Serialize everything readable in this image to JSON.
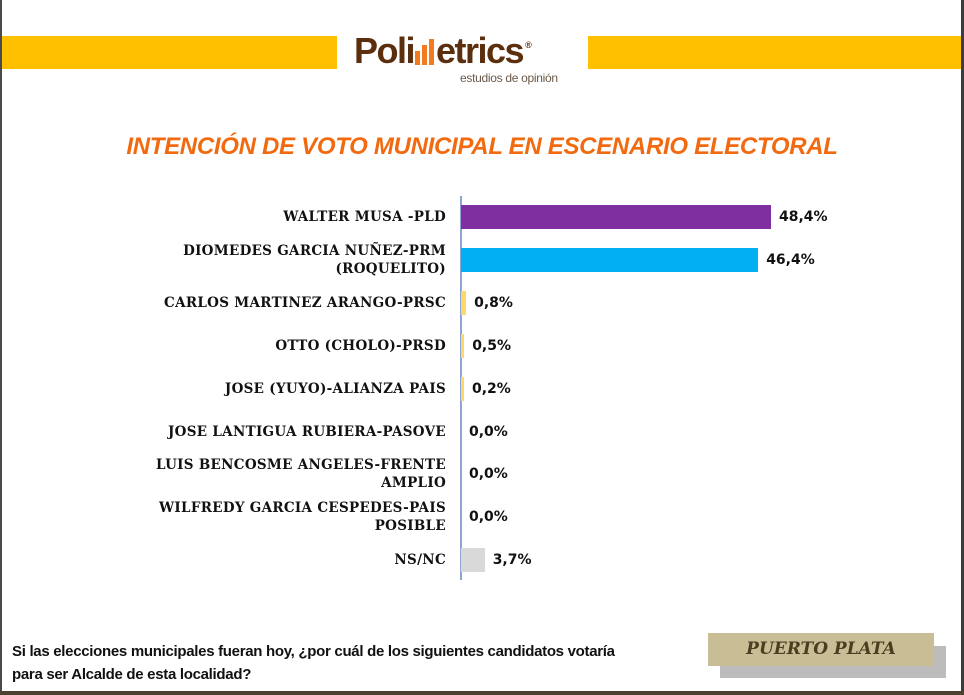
{
  "header": {
    "logo_text_left": "Poli",
    "logo_text_right": "etrics",
    "logo_registered": "®",
    "logo_subtitle": "estudios de opinión",
    "band_color": "#ffc000",
    "logo_color": "#5b2e0e",
    "logo_bar_color": "#f47a20"
  },
  "title": "INTENCIÓN DE VOTO MUNICIPAL EN ESCENARIO ELECTORAL",
  "rows": [
    {
      "label_line1": "WALTER MUSA -PLD",
      "label_line2": "",
      "value_label": "48,4%",
      "value": 48.4,
      "color": "#7f2fa0"
    },
    {
      "label_line1": "DIOMEDES GARCIA NUÑEZ-PRM",
      "label_line2": "(ROQUELITO)",
      "value_label": "46,4%",
      "value": 46.4,
      "color": "#00b0f0"
    },
    {
      "label_line1": "CARLOS MARTINEZ ARANGO-PRSC",
      "label_line2": "",
      "value_label": "0,8%",
      "value": 0.8,
      "color": "#ffd966"
    },
    {
      "label_line1": "OTTO (CHOLO)-PRSD",
      "label_line2": "",
      "value_label": "0,5%",
      "value": 0.5,
      "color": "#ffd966"
    },
    {
      "label_line1": "JOSE (YUYO)-ALIANZA PAIS",
      "label_line2": "",
      "value_label": "0,2%",
      "value": 0.2,
      "color": "#ffd966"
    },
    {
      "label_line1": "JOSE LANTIGUA RUBIERA-PASOVE",
      "label_line2": "",
      "value_label": "0,0%",
      "value": 0.0,
      "color": "#ffd966"
    },
    {
      "label_line1": "LUIS BENCOSME ANGELES-FRENTE",
      "label_line2": "AMPLIO",
      "value_label": "0,0%",
      "value": 0.0,
      "color": "#ffd966"
    },
    {
      "label_line1": "WILFREDY GARCIA CESPEDES-PAIS",
      "label_line2": "POSIBLE",
      "value_label": "0,0%",
      "value": 0.0,
      "color": "#ffd966"
    },
    {
      "label_line1": "NS/NC",
      "label_line2": "",
      "value_label": "3,7%",
      "value": 3.7,
      "color": "#d9d9d9"
    }
  ],
  "footer": {
    "question_line1": "Si las elecciones municipales fueran hoy, ¿por cuál de los siguientes candidatos votaría",
    "question_line2": "para ser Alcalde de esta localidad?",
    "location": "PUERTO PLATA"
  },
  "chart_data": {
    "type": "bar",
    "orientation": "horizontal",
    "title": "INTENCIÓN DE VOTO MUNICIPAL EN ESCENARIO ELECTORAL",
    "categories": [
      "WALTER MUSA -PLD",
      "DIOMEDES GARCIA NUÑEZ-PRM (ROQUELITO)",
      "CARLOS MARTINEZ ARANGO-PRSC",
      "OTTO (CHOLO)-PRSD",
      "JOSE (YUYO)-ALIANZA PAIS",
      "JOSE LANTIGUA RUBIERA-PASOVE",
      "LUIS BENCOSME ANGELES-FRENTE AMPLIO",
      "WILFREDY GARCIA CESPEDES-PAIS POSIBLE",
      "NS/NC"
    ],
    "values": [
      48.4,
      46.4,
      0.8,
      0.5,
      0.2,
      0.0,
      0.0,
      0.0,
      3.7
    ],
    "value_labels": [
      "48,4%",
      "46,4%",
      "0,8%",
      "0,5%",
      "0,2%",
      "0,0%",
      "0,0%",
      "0,0%",
      "3,7%"
    ],
    "colors": [
      "#7f2fa0",
      "#00b0f0",
      "#ffd966",
      "#ffd966",
      "#ffd966",
      "#ffd966",
      "#ffd966",
      "#ffd966",
      "#d9d9d9"
    ],
    "xlabel": "",
    "ylabel": "",
    "unit": "%",
    "grid": false,
    "legend": "none",
    "annotations": [
      "PUERTO PLATA",
      "Si las elecciones municipales fueran hoy, ¿por cuál de los siguientes candidatos votaría para ser Alcalde de esta localidad?"
    ]
  }
}
